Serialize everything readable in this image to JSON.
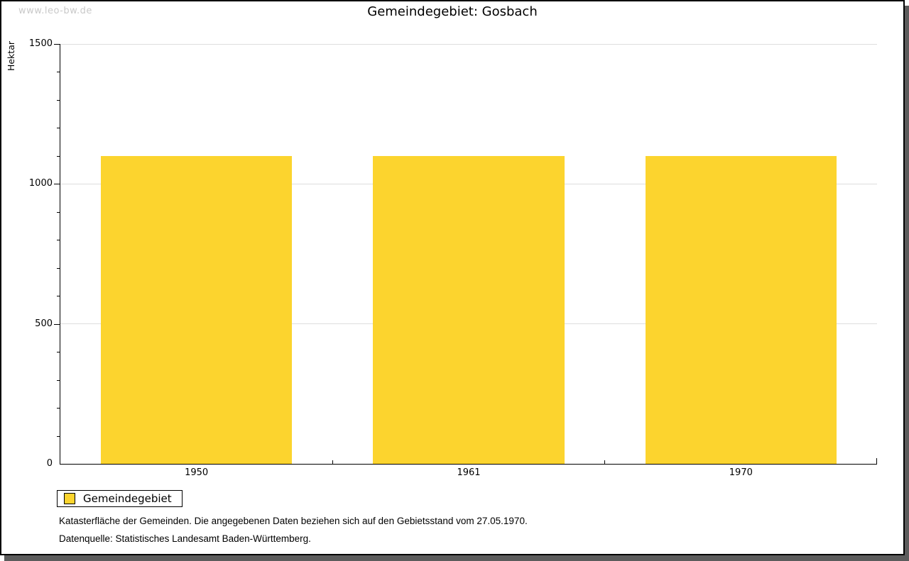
{
  "watermark": "www.leo-bw.de",
  "chart_data": {
    "type": "bar",
    "title": "Gemeindegebiet: Gosbach",
    "categories": [
      "1950",
      "1961",
      "1970"
    ],
    "series": [
      {
        "name": "Gemeindegebiet",
        "values": [
          1100,
          1100,
          1100
        ]
      }
    ],
    "xlabel": "",
    "ylabel": "Hektar",
    "ylim": [
      0,
      1500
    ],
    "yticks_major": [
      0,
      500,
      1000,
      1500
    ],
    "minor_tick_step": 100,
    "grid": true,
    "legend_position": "bottom-left",
    "bar_color": "#fcd42e"
  },
  "legend": {
    "items": [
      {
        "label": "Gemeindegebiet",
        "color": "#fcd42e"
      }
    ]
  },
  "footer": {
    "line1": "Katasterfläche der Gemeinden. Die angegebenen Daten beziehen sich auf den Gebietsstand vom 27.05.1970.",
    "line2": "Datenquelle: Statistisches Landesamt Baden-Württemberg."
  },
  "colors": {
    "bar": "#fcd42e",
    "gridline": "#dedede",
    "axis": "#000000",
    "watermark": "#c9c9c9",
    "shadow": "#5c5c5c"
  }
}
